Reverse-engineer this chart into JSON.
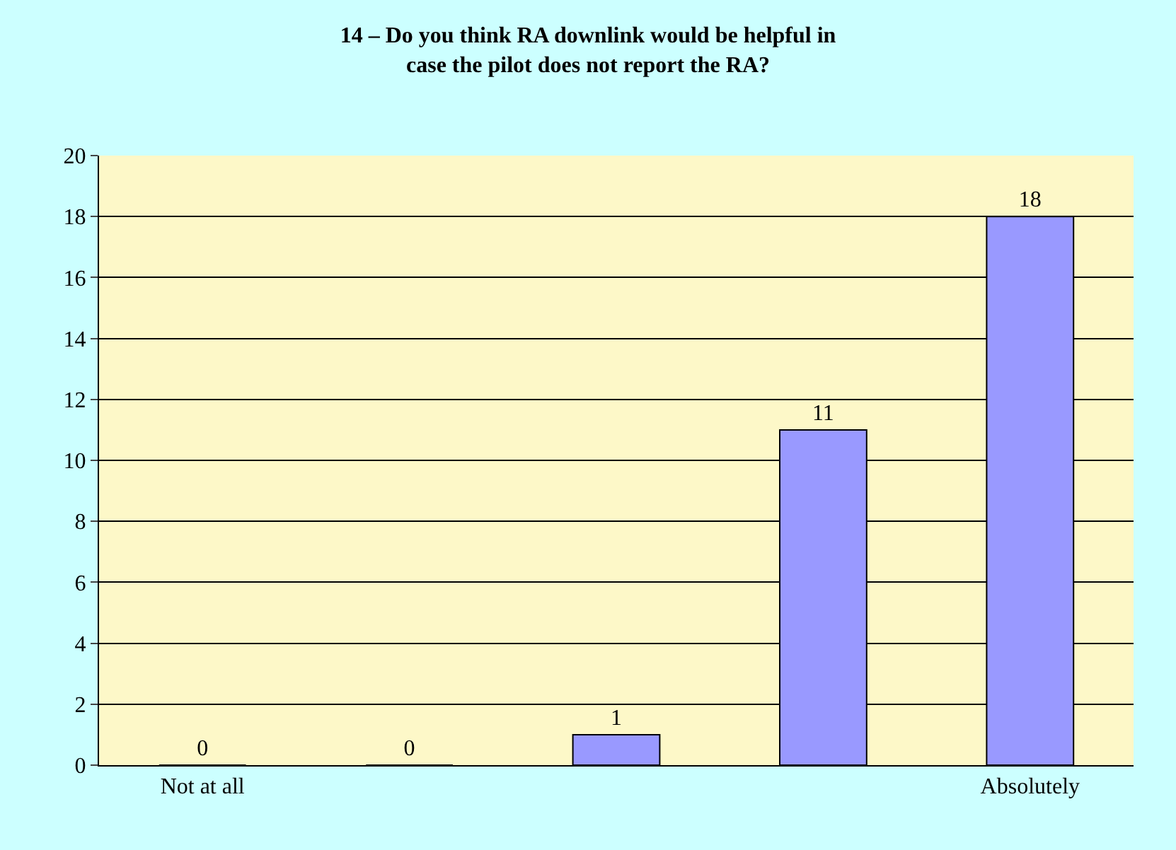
{
  "chart_data": {
    "type": "bar",
    "title": "14 – Do you think RA downlink would be helpful in case the pilot does not report the RA?",
    "categories": [
      "Not at all",
      null,
      null,
      null,
      "Absolutely"
    ],
    "values": [
      0,
      0,
      1,
      11,
      18
    ],
    "color": "#9999ff",
    "ylim": [
      0,
      20
    ],
    "yticks": [
      0,
      2,
      4,
      6,
      8,
      10,
      12,
      14,
      16,
      18,
      20
    ],
    "grid": "y",
    "data_labels": true
  }
}
